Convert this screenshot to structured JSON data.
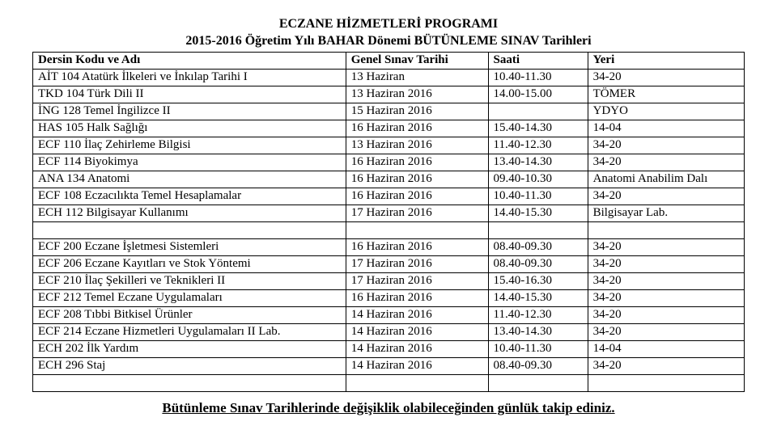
{
  "title_line1": "ECZANE HİZMETLERİ PROGRAMI",
  "title_line2": "2015-2016 Öğretim Yılı BAHAR Dönemi BÜTÜNLEME SINAV Tarihleri",
  "columns": [
    "Dersin Kodu ve Adı",
    "Genel Sınav Tarihi",
    "Saati",
    "Yeri"
  ],
  "rows": [
    [
      "AİT 104 Atatürk İlkeleri ve İnkılap Tarihi I",
      "13 Haziran",
      "10.40-11.30",
      "34-20"
    ],
    [
      "TKD 104 Türk Dili II",
      "13 Haziran 2016",
      "14.00-15.00",
      "TÖMER"
    ],
    [
      "İNG 128 Temel İngilizce II",
      "15 Haziran 2016",
      "",
      "YDYO"
    ],
    [
      "HAS 105 Halk Sağlığı",
      "16 Haziran 2016",
      "15.40-14.30",
      "14-04"
    ],
    [
      "ECF 110 İlaç Zehirleme Bilgisi",
      "13 Haziran 2016",
      "11.40-12.30",
      "34-20"
    ],
    [
      "ECF 114 Biyokimya",
      "16 Haziran 2016",
      "13.40-14.30",
      "34-20"
    ],
    [
      "ANA 134 Anatomi",
      "16 Haziran 2016",
      "09.40-10.30",
      "Anatomi Anabilim Dalı"
    ],
    [
      "ECF 108 Eczacılıkta Temel Hesaplamalar",
      "16 Haziran 2016",
      "10.40-11.30",
      "34-20"
    ],
    [
      "ECH 112 Bilgisayar Kullanımı",
      "17 Haziran 2016",
      "14.40-15.30",
      "Bilgisayar Lab."
    ],
    [
      "",
      "",
      "",
      ""
    ],
    [
      "ECF 200 Eczane İşletmesi Sistemleri",
      "16 Haziran 2016",
      "08.40-09.30",
      "34-20"
    ],
    [
      "ECF 206 Eczane Kayıtları ve Stok Yöntemi",
      "17 Haziran 2016",
      "08.40-09.30",
      "34-20"
    ],
    [
      "ECF 210 İlaç Şekilleri ve Teknikleri II",
      "17 Haziran 2016",
      "15.40-16.30",
      "34-20"
    ],
    [
      "ECF 212 Temel Eczane Uygulamaları",
      "16 Haziran 2016",
      "14.40-15.30",
      "34-20"
    ],
    [
      "ECF 208 Tıbbi Bitkisel Ürünler",
      "14 Haziran 2016",
      "11.40-12.30",
      "34-20"
    ],
    [
      "ECF 214 Eczane Hizmetleri Uygulamaları II Lab.",
      "14 Haziran 2016",
      "13.40-14.30",
      "34-20"
    ],
    [
      "ECH 202 İlk Yardım",
      "14 Haziran 2016",
      "10.40-11.30",
      "14-04"
    ],
    [
      "ECH 296 Staj",
      "14 Haziran 2016",
      "08.40-09.30",
      "34-20"
    ],
    [
      "",
      "",
      "",
      ""
    ]
  ],
  "footer": "Bütünleme Sınav Tarihlerinde değişiklik olabileceğinden günlük takip ediniz."
}
